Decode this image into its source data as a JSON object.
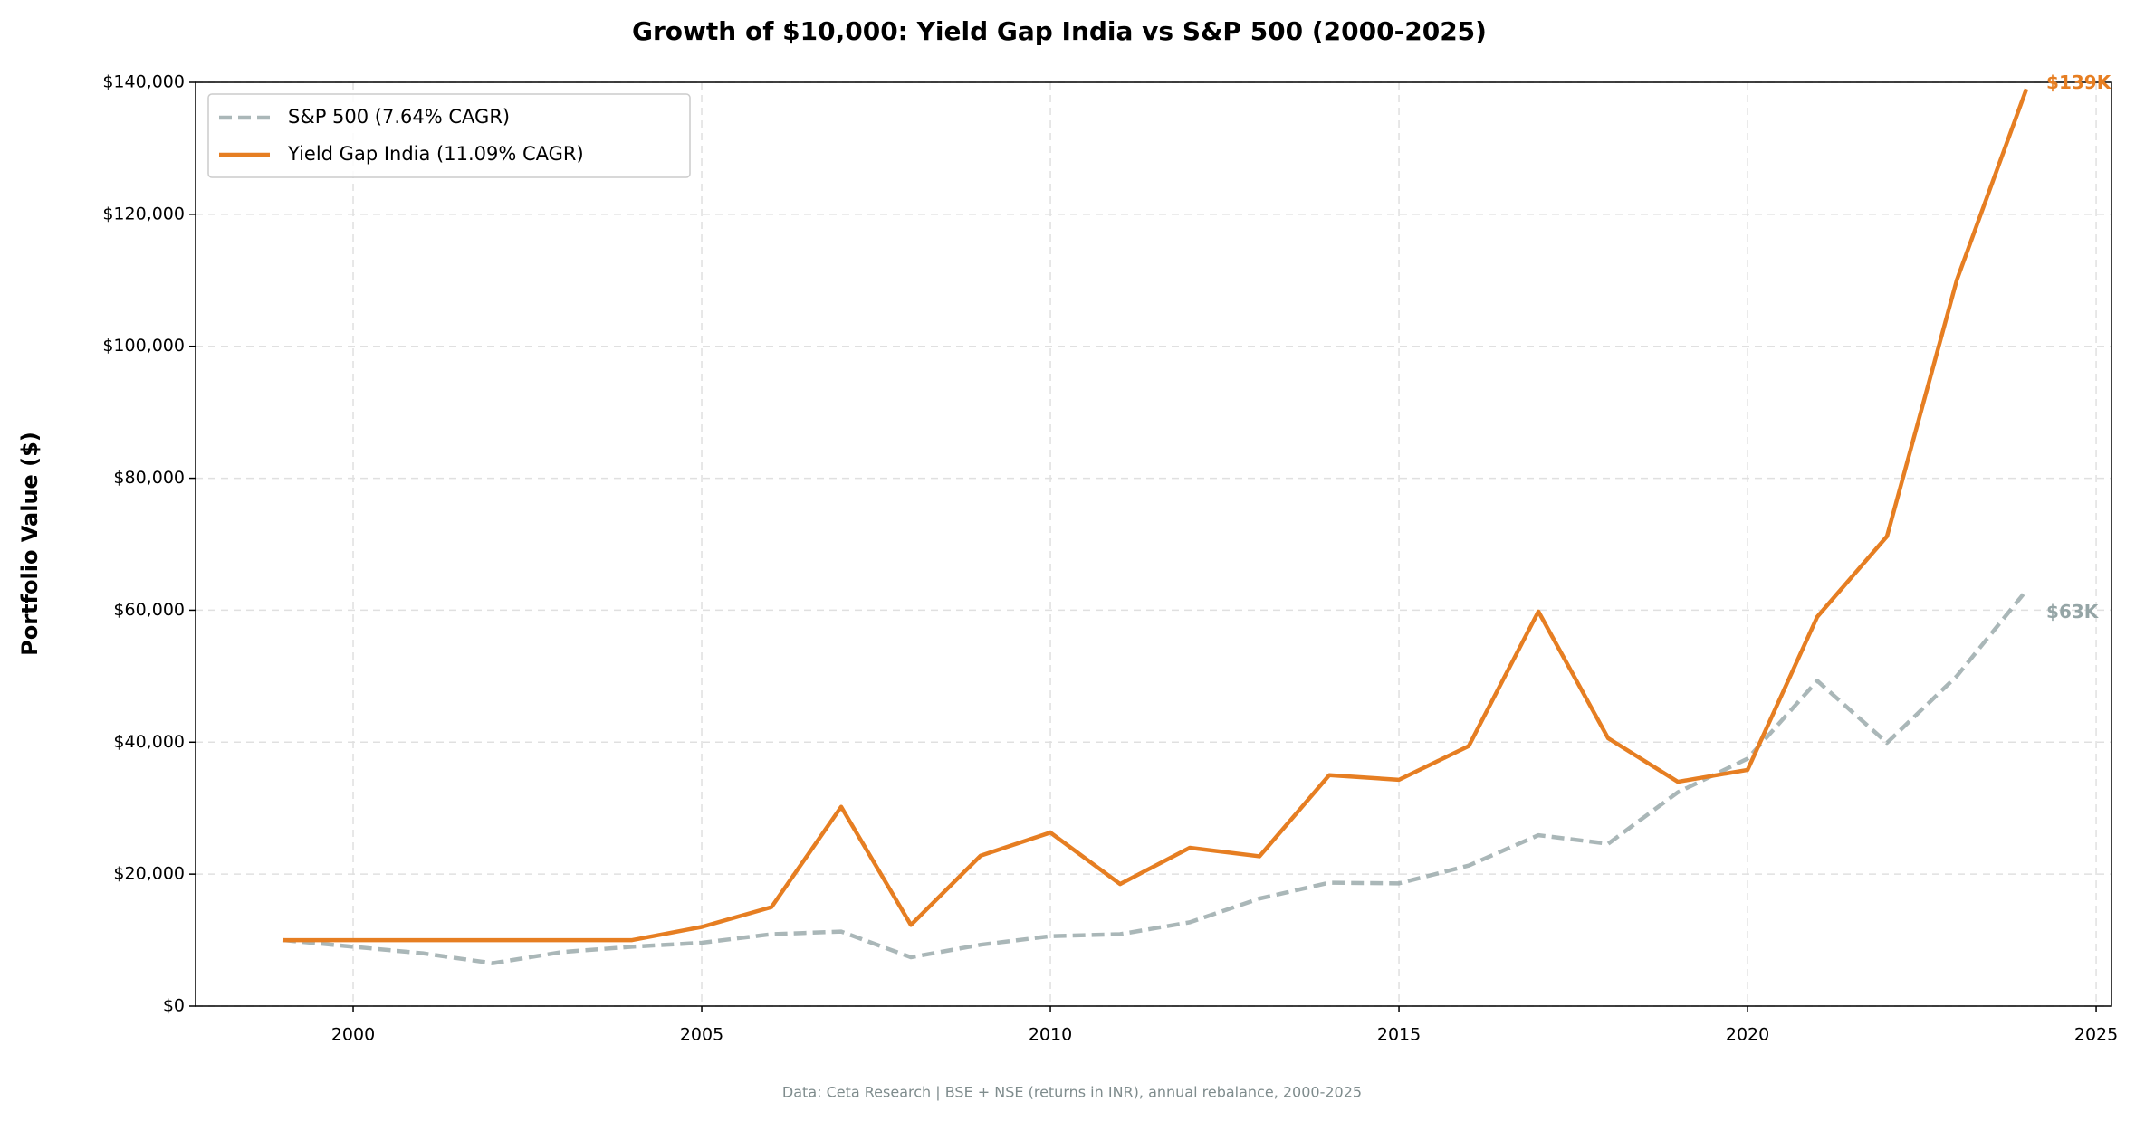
{
  "chart_data": {
    "type": "line",
    "title": "Growth of $10,000: Yield Gap India vs S&P 500 (2000-2025)",
    "ylabel": "Portfolio Value ($)",
    "footnote": "Data: Ceta Research | BSE + NSE (returns in INR), annual rebalance, 2000-2025",
    "x": [
      1999,
      2000,
      2001,
      2002,
      2003,
      2004,
      2005,
      2006,
      2007,
      2008,
      2009,
      2010,
      2011,
      2012,
      2013,
      2014,
      2015,
      2016,
      2017,
      2018,
      2019,
      2020,
      2021,
      2022,
      2023,
      2024
    ],
    "series": [
      {
        "name": "S&P 500 (7.64% CAGR)",
        "color": "#95a5a6",
        "style": "dashed",
        "end_label": "$63K",
        "values": [
          10000,
          9000,
          8000,
          6500,
          8200,
          9000,
          9600,
          10900,
          11300,
          7400,
          9300,
          10600,
          10900,
          12700,
          16300,
          18700,
          18600,
          21300,
          25900,
          24600,
          32400,
          37500,
          49300,
          39900,
          50000,
          63000
        ]
      },
      {
        "name": "Yield Gap India (11.09% CAGR)",
        "color": "#e67e22",
        "style": "solid",
        "end_label": "$139K",
        "values": [
          10000,
          10000,
          10000,
          10000,
          10000,
          10000,
          12000,
          15000,
          30200,
          12300,
          22800,
          26300,
          18500,
          24000,
          22700,
          35000,
          34300,
          39400,
          59800,
          40600,
          34000,
          35800,
          59000,
          71200,
          110000,
          139000
        ]
      }
    ],
    "xlim": [
      1997.74,
      2025.22
    ],
    "xticks": [
      2000,
      2005,
      2010,
      2015,
      2020,
      2025
    ],
    "ylim": [
      0,
      140000
    ],
    "yticks": [
      {
        "value": 0,
        "label": "$0"
      },
      {
        "value": 20000,
        "label": "$20,000"
      },
      {
        "value": 40000,
        "label": "$40,000"
      },
      {
        "value": 60000,
        "label": "$60,000"
      },
      {
        "value": 80000,
        "label": "$80,000"
      },
      {
        "value": 100000,
        "label": "$100,000"
      },
      {
        "value": 120000,
        "label": "$120,000"
      },
      {
        "value": 140000,
        "label": "$140,000"
      }
    ],
    "grid": true,
    "legend": "upper left"
  }
}
